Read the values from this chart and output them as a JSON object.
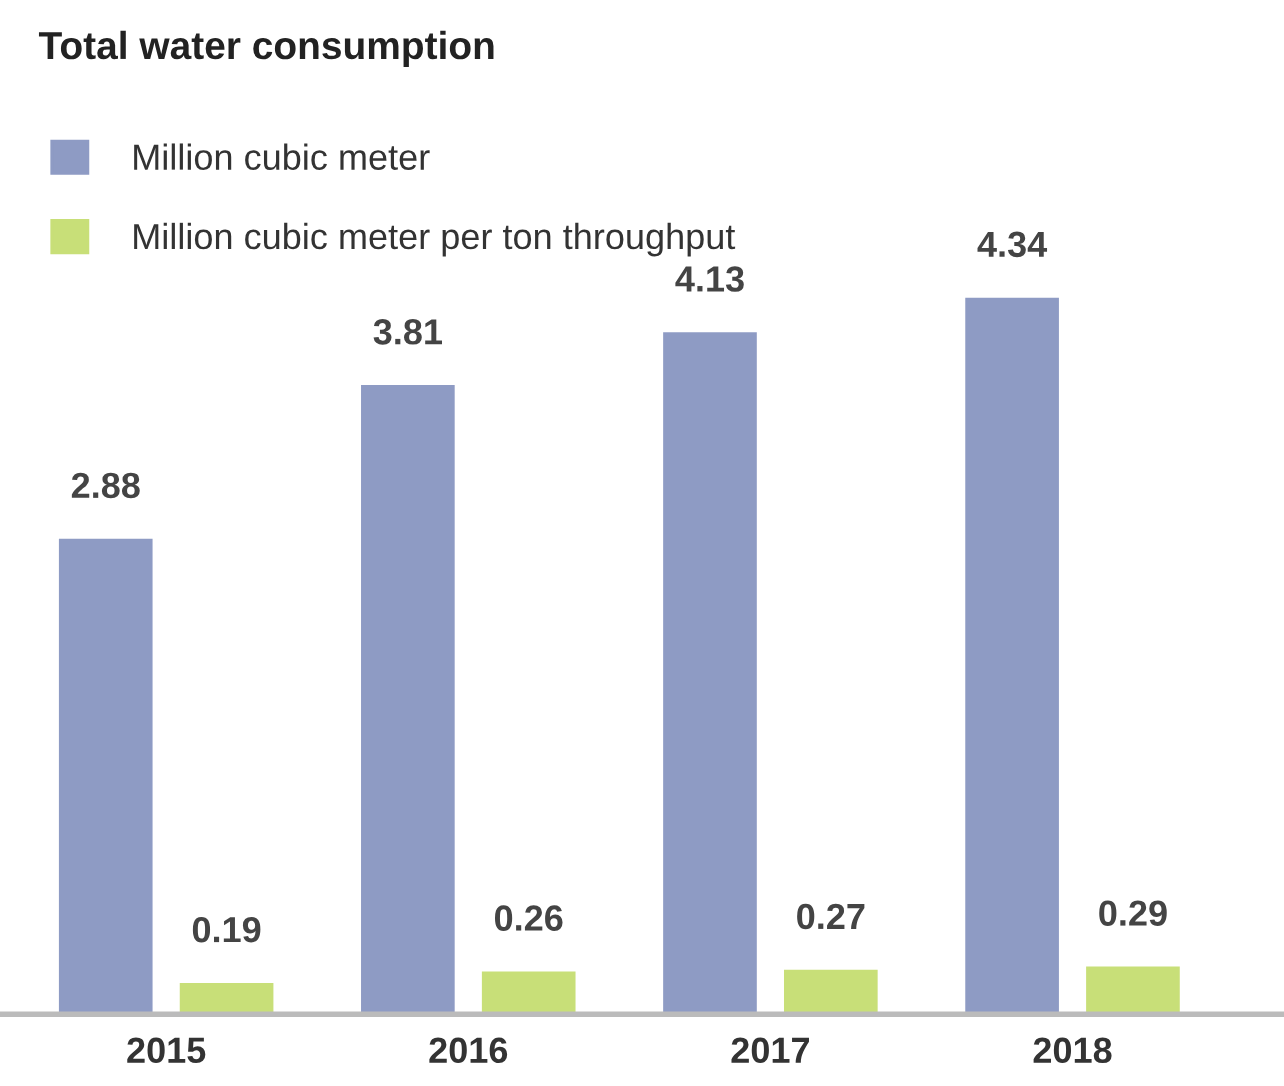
{
  "chart_data": {
    "type": "bar",
    "title": "Total water consumption",
    "categories": [
      "2015",
      "2016",
      "2017",
      "2018"
    ],
    "series": [
      {
        "name": "Million cubic meter",
        "color": "#8e9bc4",
        "values": [
          2.88,
          3.81,
          4.13,
          4.34
        ]
      },
      {
        "name": "Million cubic meter per ton throughput",
        "color": "#c8df78",
        "values": [
          0.19,
          0.26,
          0.27,
          0.29
        ]
      }
    ],
    "data_labels": true,
    "legend": "top left",
    "grid": false,
    "tick_labels": "x"
  }
}
